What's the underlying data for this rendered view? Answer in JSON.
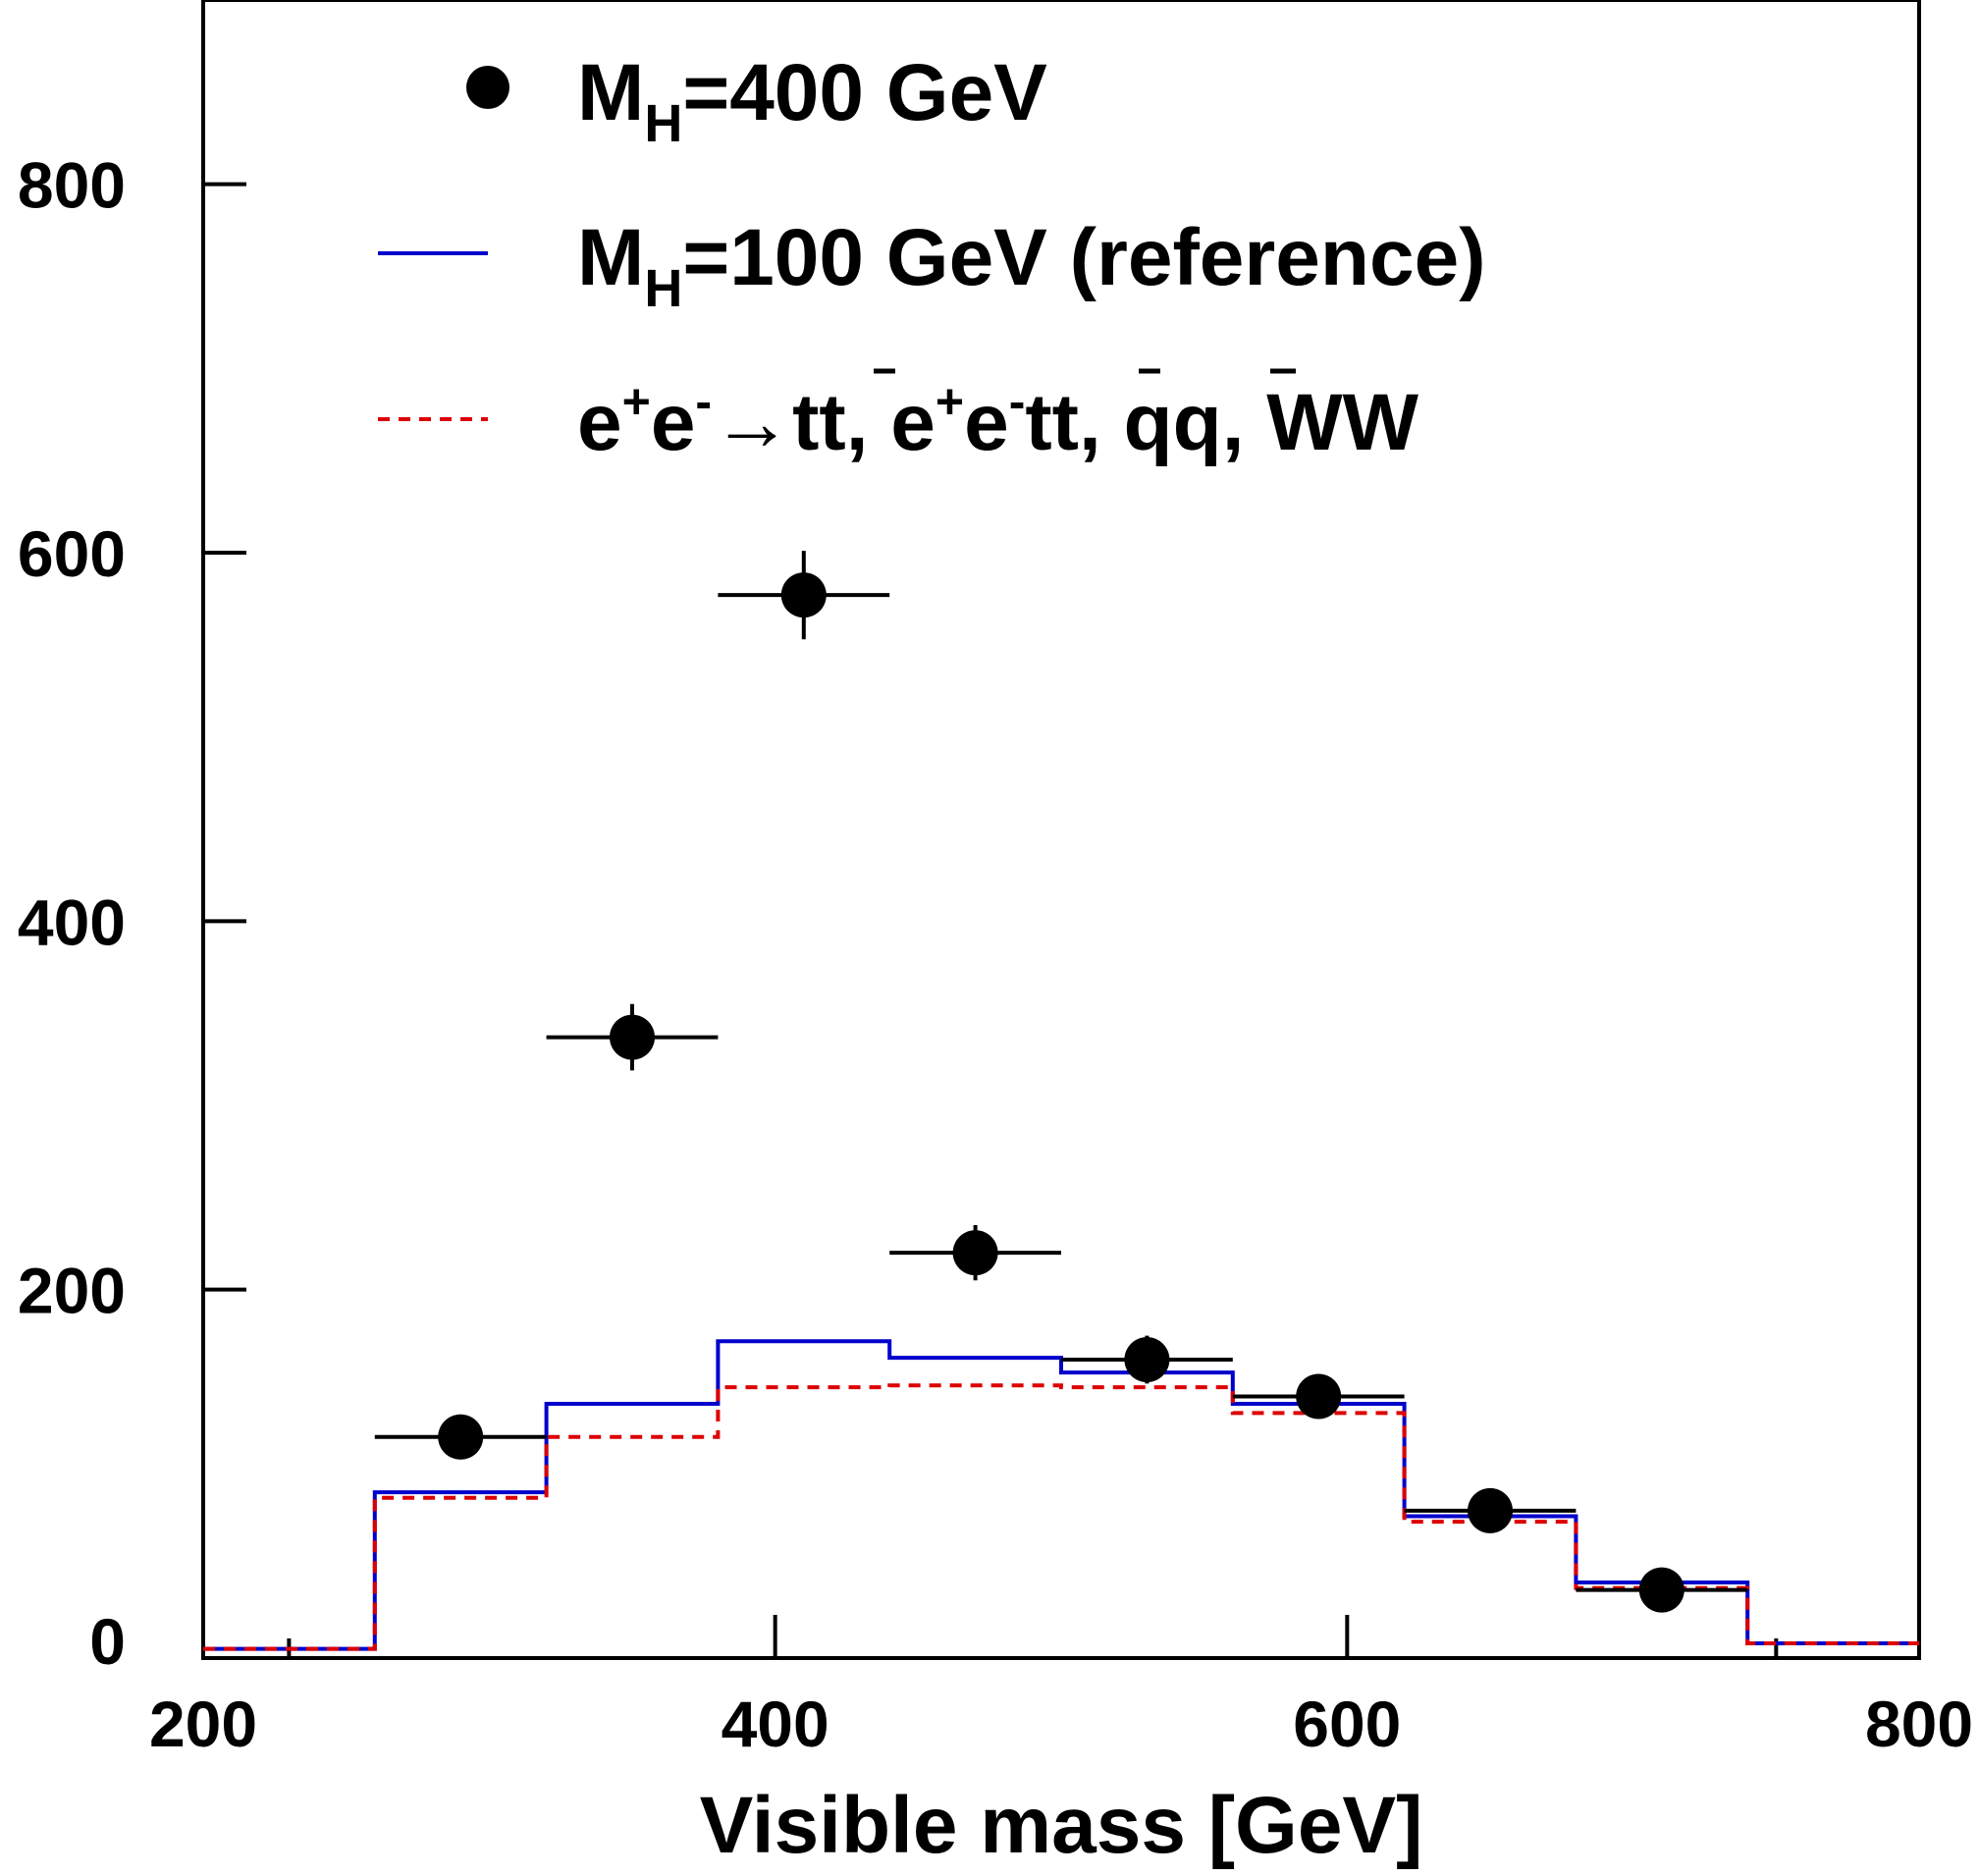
{
  "chart_data": {
    "type": "histogram",
    "xlabel": "Visible mass [GeV]",
    "ylabel": "",
    "xlim": [
      200,
      800
    ],
    "ylim": [
      0,
      900
    ],
    "xticks": [
      200,
      400,
      600,
      800
    ],
    "yticks": [
      0,
      200,
      400,
      600,
      800
    ],
    "x_minor_ticks": [
      230,
      750
    ],
    "bin_edges": [
      200,
      260,
      320,
      380,
      440,
      500,
      560,
      620,
      680,
      740,
      800
    ],
    "legend_position": "top",
    "series": [
      {
        "name": "M_H=400 GeV",
        "legend_main": "M",
        "legend_sub": "H",
        "legend_rest": "=400 GeV",
        "style": "points",
        "color": "#000000",
        "x": [
          290,
          350,
          410,
          470,
          530,
          590,
          650,
          710
        ],
        "xerr": 30,
        "values": [
          120,
          337,
          577,
          220,
          162,
          142,
          80,
          37
        ],
        "yerr": [
          10,
          18,
          24,
          15,
          13,
          11,
          9,
          6
        ]
      },
      {
        "name": "M_H=100 GeV (reference)",
        "legend_main": "M",
        "legend_sub": "H",
        "legend_rest": "=100 GeV (reference)",
        "style": "solid-step",
        "color": "#0000cc",
        "values": [
          5,
          90,
          138,
          172,
          163,
          155,
          138,
          77,
          41,
          8
        ]
      },
      {
        "name": "e+e- → tt̄, e+e-tt̄, qq̄, WW",
        "legend_parts": [
          "e",
          "+",
          "e",
          "-",
          "→tt, e",
          "+",
          "e",
          "-",
          "tt, qq, WW"
        ],
        "style": "dashed-step",
        "color": "#dd0000",
        "values": [
          5,
          87,
          120,
          147,
          148,
          147,
          133,
          74,
          38,
          8
        ]
      }
    ]
  }
}
